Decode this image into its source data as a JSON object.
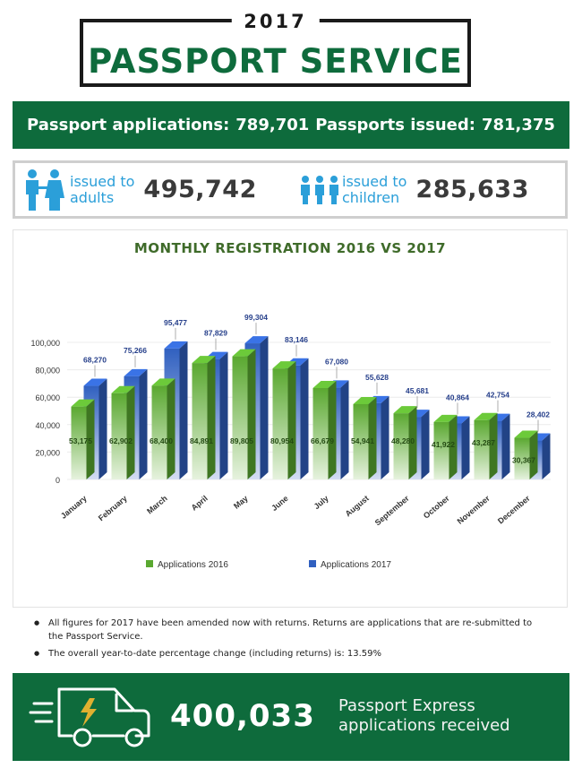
{
  "header": {
    "year": "2017",
    "title": "PASSPORT SERVICE"
  },
  "banner": {
    "applications_label": "Passport applications:",
    "applications_value": "789,701",
    "issued_label": "Passports issued:",
    "issued_value": "781,375"
  },
  "issued": {
    "adults": {
      "label_line1": "issued to",
      "label_line2": "adults",
      "value": "495,742"
    },
    "children": {
      "label_line1": "issued to",
      "label_line2": "children",
      "value": "285,633"
    }
  },
  "chart_data": {
    "type": "bar",
    "title": "MONTHLY REGISTRATION 2016 VS 2017",
    "categories": [
      "January",
      "February",
      "March",
      "April",
      "May",
      "June",
      "July",
      "August",
      "September",
      "October",
      "November",
      "December"
    ],
    "series": [
      {
        "name": "Applications 2016",
        "color": "#5aa830",
        "values": [
          53175,
          62902,
          68400,
          84891,
          89805,
          80954,
          66679,
          54941,
          48280,
          41922,
          43287,
          30367
        ],
        "labels": [
          "53,175",
          "62,902",
          "68,400",
          "84,891",
          "89,805",
          "80,954",
          "66,679",
          "54,941",
          "48,280",
          "41,922",
          "43,287",
          "30,367"
        ]
      },
      {
        "name": "Applications 2017",
        "color": "#3060c0",
        "values": [
          68270,
          75266,
          95477,
          87829,
          99304,
          83146,
          67080,
          55628,
          45681,
          40864,
          42754,
          28402
        ],
        "labels": [
          "68,270",
          "75,266",
          "95,477",
          "87,829",
          "99,304",
          "83,146",
          "67,080",
          "55,628",
          "45,681",
          "40,864",
          "42,754",
          "28,402"
        ]
      }
    ],
    "yticks": [
      "0",
      "20,000",
      "40,000",
      "60,000",
      "80,000",
      "100,000"
    ],
    "ylim": [
      0,
      100000
    ],
    "grid": true,
    "legend_position": "bottom"
  },
  "notes": [
    "All figures for 2017 have been amended now with returns.  Returns are applications that are re-submitted to the Passport Service.",
    "The overall year-to-date percentage change (including returns) is: 13.59%"
  ],
  "express": {
    "value": "400,033",
    "label_line1": "Passport Express",
    "label_line2": "applications received"
  },
  "colors": {
    "brand_green": "#0e6b3c",
    "accent_blue": "#2b9fd9"
  },
  "icons": {
    "adults": "adult-couple-icon",
    "children": "children-group-icon",
    "express": "delivery-van-icon"
  }
}
